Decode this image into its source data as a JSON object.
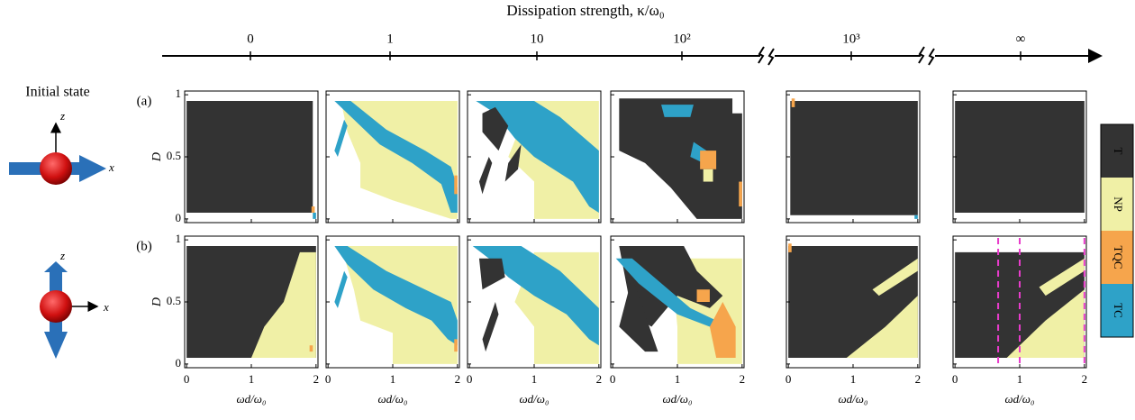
{
  "chart_data": {
    "type": "phase_map",
    "title": "Dissipation strength, κ/ω₀",
    "kappa_labels": [
      "0",
      "1",
      "10",
      "10²",
      "10³",
      "∞"
    ],
    "initial_state_label": "Initial state",
    "axis_letters": {
      "z": "z",
      "x": "x"
    },
    "xlabel": "ωd/ω₀",
    "ylabel": "D",
    "xlim": [
      -0.03,
      2.03
    ],
    "ylim": [
      -0.03,
      1.03
    ],
    "xticks": [
      0,
      1,
      2
    ],
    "yticks": [
      0,
      0.5,
      1
    ],
    "phases": [
      {
        "name": "T",
        "color": "#333333"
      },
      {
        "name": "NP",
        "color": "#f0f0a6"
      },
      {
        "name": "TQC",
        "color": "#f6a54c"
      },
      {
        "name": "TC",
        "color": "#2ea2c8"
      }
    ],
    "marker_color": "#e83ccb",
    "rows": [
      {
        "label": "(a)",
        "panels": [
          {
            "regions": [
              {
                "phase": "T",
                "x": [
                  0,
                  1.95,
                  1.95,
                  0
                ],
                "y": [
                  0.05,
                  0.05,
                  0.95,
                  0.95
                ]
              },
              {
                "phase": "TQC",
                "x": [
                  1.93,
                  1.98,
                  1.98,
                  1.93
                ],
                "y": [
                  0.05,
                  0.05,
                  0.1,
                  0.1
                ]
              },
              {
                "phase": "TC",
                "x": [
                  1.95,
                  2,
                  2,
                  1.95
                ],
                "y": [
                  0,
                  0,
                  0.05,
                  0.05
                ]
              }
            ]
          },
          {
            "regions": [
              {
                "phase": "NP",
                "x": [
                  0.2,
                  2,
                  2,
                  1.9,
                  1.0,
                  0.5,
                  0.5,
                  0.3
                ],
                "y": [
                  0.95,
                  0.95,
                  0,
                  0,
                  0.15,
                  0.25,
                  0.45,
                  0.7
                ]
              },
              {
                "phase": "TC",
                "x": [
                  0.1,
                  0.35,
                  0.9,
                  1.5,
                  1.9,
                  2,
                  2,
                  1.9,
                  1.75,
                  1.3,
                  0.8,
                  0.4
                ],
                "y": [
                  0.95,
                  0.95,
                  0.72,
                  0.55,
                  0.42,
                  0.25,
                  0.05,
                  0.05,
                  0.28,
                  0.45,
                  0.6,
                  0.8
                ]
              },
              {
                "phase": "TC",
                "x": [
                  0.1,
                  0.25,
                  0.3,
                  0.15
                ],
                "y": [
                  0.55,
                  0.8,
                  0.75,
                  0.5
                ]
              },
              {
                "phase": "TQC",
                "x": [
                  1.95,
                  2,
                  2,
                  1.95
                ],
                "y": [
                  0.2,
                  0.2,
                  0.35,
                  0.35
                ]
              }
            ]
          },
          {
            "regions": [
              {
                "phase": "NP",
                "x": [
                  0.95,
                  2,
                  2,
                  1.0,
                  1.0,
                  0.6
                ],
                "y": [
                  0.95,
                  0.95,
                  0,
                  0,
                  0.3,
                  0.5
                ]
              },
              {
                "phase": "TC",
                "x": [
                  0.1,
                  1.0,
                  1.4,
                  2,
                  2,
                  1.85,
                  1.6,
                  1.0,
                  0.7,
                  0.4
                ],
                "y": [
                  0.95,
                  0.95,
                  0.82,
                  0.55,
                  0.05,
                  0.1,
                  0.3,
                  0.5,
                  0.65,
                  0.85
                ]
              },
              {
                "phase": "T",
                "x": [
                  0.2,
                  0.4,
                  0.6,
                  0.45,
                  0.2
                ],
                "y": [
                  0.85,
                  0.9,
                  0.75,
                  0.55,
                  0.7
                ]
              },
              {
                "phase": "T",
                "x": [
                  0.15,
                  0.3,
                  0.35,
                  0.2
                ],
                "y": [
                  0.3,
                  0.5,
                  0.45,
                  0.2
                ]
              },
              {
                "phase": "T",
                "x": [
                  0.6,
                  0.8,
                  0.75,
                  0.55
                ],
                "y": [
                  0.45,
                  0.6,
                  0.4,
                  0.3
                ]
              }
            ]
          },
          {
            "regions": [
              {
                "phase": "T",
                "x": [
                  0.1,
                  1.85,
                  1.85,
                  2,
                  2,
                  1.3,
                  0.9,
                  0.5,
                  0.1
                ],
                "y": [
                  0.97,
                  0.97,
                  0.85,
                  0.85,
                  0,
                  0,
                  0.25,
                  0.45,
                  0.55
                ]
              },
              {
                "phase": "TC",
                "x": [
                  0.75,
                  1.25,
                  1.2,
                  0.8
                ],
                "y": [
                  0.92,
                  0.92,
                  0.82,
                  0.82
                ]
              },
              {
                "phase": "TC",
                "x": [
                  1.25,
                  1.45,
                  1.4,
                  1.2
                ],
                "y": [
                  0.62,
                  0.55,
                  0.45,
                  0.5
                ]
              },
              {
                "phase": "TQC",
                "x": [
                  1.35,
                  1.6,
                  1.6,
                  1.35
                ],
                "y": [
                  0.4,
                  0.4,
                  0.55,
                  0.55
                ]
              },
              {
                "phase": "NP",
                "x": [
                  1.4,
                  1.55,
                  1.55,
                  1.4
                ],
                "y": [
                  0.3,
                  0.3,
                  0.4,
                  0.4
                ]
              },
              {
                "phase": "TQC",
                "x": [
                  1.95,
                  2,
                  2,
                  1.95
                ],
                "y": [
                  0.1,
                  0.1,
                  0.3,
                  0.3
                ]
              }
            ]
          },
          {
            "regions": [
              {
                "phase": "T",
                "x": [
                  0.03,
                  2,
                  2,
                  0.03
                ],
                "y": [
                  0.03,
                  0.03,
                  0.95,
                  0.95
                ]
              },
              {
                "phase": "TQC",
                "x": [
                  0.05,
                  0.1,
                  0.1,
                  0.05
                ],
                "y": [
                  0.9,
                  0.9,
                  0.97,
                  0.97
                ]
              },
              {
                "phase": "TC",
                "x": [
                  1.95,
                  2,
                  2,
                  1.95
                ],
                "y": [
                  0,
                  0,
                  0.03,
                  0.03
                ]
              }
            ]
          },
          {
            "regions": [
              {
                "phase": "T",
                "x": [
                  0,
                  2,
                  2,
                  0
                ],
                "y": [
                  0.05,
                  0.05,
                  0.95,
                  0.95
                ]
              }
            ]
          }
        ]
      },
      {
        "label": "(b)",
        "panels": [
          {
            "regions": [
              {
                "phase": "T",
                "x": [
                  0,
                  2,
                  2,
                  0
                ],
                "y": [
                  0.05,
                  0.05,
                  0.95,
                  0.95
                ]
              },
              {
                "phase": "NP",
                "x": [
                  1.0,
                  2,
                  2,
                  1.75,
                  1.5,
                  1.2
                ],
                "y": [
                  0.05,
                  0.05,
                  0.9,
                  0.9,
                  0.5,
                  0.3
                ]
              },
              {
                "phase": "TQC",
                "x": [
                  1.9,
                  1.95,
                  1.95,
                  1.9
                ],
                "y": [
                  0.1,
                  0.1,
                  0.15,
                  0.15
                ]
              }
            ]
          },
          {
            "regions": [
              {
                "phase": "NP",
                "x": [
                  0.2,
                  2,
                  2,
                  1.0,
                  1.0,
                  0.5,
                  0.4
                ],
                "y": [
                  0.95,
                  0.95,
                  0,
                  0,
                  0.25,
                  0.35,
                  0.6
                ]
              },
              {
                "phase": "TC",
                "x": [
                  0.1,
                  0.3,
                  0.9,
                  1.5,
                  1.9,
                  2,
                  2,
                  1.85,
                  1.6,
                  1.2,
                  0.7,
                  0.3
                ],
                "y": [
                  0.95,
                  0.95,
                  0.75,
                  0.6,
                  0.5,
                  0.35,
                  0.15,
                  0.2,
                  0.35,
                  0.45,
                  0.6,
                  0.8
                ]
              },
              {
                "phase": "TC",
                "x": [
                  0.1,
                  0.25,
                  0.3,
                  0.15
                ],
                "y": [
                  0.5,
                  0.75,
                  0.7,
                  0.45
                ]
              },
              {
                "phase": "TQC",
                "x": [
                  1.95,
                  2,
                  2,
                  1.95
                ],
                "y": [
                  0.1,
                  0.1,
                  0.2,
                  0.2
                ]
              }
            ]
          },
          {
            "regions": [
              {
                "phase": "NP",
                "x": [
                  1.0,
                  2,
                  2,
                  1.0,
                  1.0,
                  0.7
                ],
                "y": [
                  0.9,
                  0.9,
                  0,
                  0,
                  0.3,
                  0.5
                ]
              },
              {
                "phase": "TC",
                "x": [
                  0.05,
                  0.8,
                  1.4,
                  2,
                  2,
                  1.85,
                  1.5,
                  1.0,
                  0.6,
                  0.3
                ],
                "y": [
                  0.95,
                  0.95,
                  0.75,
                  0.45,
                  0.15,
                  0.2,
                  0.4,
                  0.55,
                  0.7,
                  0.85
                ]
              },
              {
                "phase": "T",
                "x": [
                  0.15,
                  0.5,
                  0.55,
                  0.2
                ],
                "y": [
                  0.85,
                  0.85,
                  0.7,
                  0.6
                ]
              },
              {
                "phase": "T",
                "x": [
                  0.2,
                  0.4,
                  0.45,
                  0.25
                ],
                "y": [
                  0.2,
                  0.5,
                  0.4,
                  0.1
                ]
              }
            ]
          },
          {
            "regions": [
              {
                "phase": "NP",
                "x": [
                  0.9,
                  2,
                  2,
                  1.0,
                  1.0
                ],
                "y": [
                  0.85,
                  0.85,
                  0,
                  0,
                  0.3
                ]
              },
              {
                "phase": "T",
                "x": [
                  0.1,
                  1.1,
                  1.3,
                  1.7,
                  1.5,
                  1.0,
                  0.6,
                  0.3
                ],
                "y": [
                  0.95,
                  0.95,
                  0.75,
                  0.55,
                  0.45,
                  0.55,
                  0.3,
                  0.4
                ]
              },
              {
                "phase": "TC",
                "x": [
                  0.05,
                  0.3,
                  1.2,
                  1.6,
                  1.5,
                  1.0,
                  0.4
                ],
                "y": [
                  0.85,
                  0.85,
                  0.45,
                  0.35,
                  0.3,
                  0.4,
                  0.65
                ]
              },
              {
                "phase": "TQC",
                "x": [
                  1.5,
                  1.7,
                  1.9,
                  1.9,
                  1.6
                ],
                "y": [
                  0.3,
                  0.5,
                  0.3,
                  0.05,
                  0.05
                ]
              },
              {
                "phase": "TQC",
                "x": [
                  1.3,
                  1.5,
                  1.5,
                  1.3
                ],
                "y": [
                  0.5,
                  0.5,
                  0.6,
                  0.6
                ]
              },
              {
                "phase": "T",
                "x": [
                  0.1,
                  0.3,
                  0.7,
                  0.5
                ],
                "y": [
                  0.3,
                  0.7,
                  0.1,
                  0.1
                ]
              }
            ]
          },
          {
            "regions": [
              {
                "phase": "T",
                "x": [
                  0,
                  2,
                  2,
                  0
                ],
                "y": [
                  0.05,
                  0.05,
                  0.95,
                  0.95
                ]
              },
              {
                "phase": "NP",
                "x": [
                  0.9,
                  2,
                  2,
                  1.5
                ],
                "y": [
                  0.05,
                  0.05,
                  0.55,
                  0.3
                ]
              },
              {
                "phase": "NP",
                "x": [
                  1.3,
                  2,
                  2,
                  1.4
                ],
                "y": [
                  0.6,
                  0.85,
                  0.75,
                  0.55
                ]
              },
              {
                "phase": "TQC",
                "x": [
                  0,
                  0.05,
                  0.05,
                  0
                ],
                "y": [
                  0.9,
                  0.9,
                  0.97,
                  0.97
                ]
              }
            ]
          },
          {
            "regions": [
              {
                "phase": "T",
                "x": [
                  0,
                  2,
                  2,
                  0
                ],
                "y": [
                  0.05,
                  0.05,
                  0.9,
                  0.9
                ]
              },
              {
                "phase": "NP",
                "x": [
                  0.8,
                  2,
                  2,
                  1.4
                ],
                "y": [
                  0.05,
                  0.05,
                  0.6,
                  0.35
                ]
              },
              {
                "phase": "NP",
                "x": [
                  1.3,
                  2,
                  2,
                  1.4
                ],
                "y": [
                  0.62,
                  0.85,
                  0.75,
                  0.55
                ]
              }
            ],
            "markers": [
              0.667,
              1,
              2
            ]
          }
        ]
      }
    ]
  }
}
